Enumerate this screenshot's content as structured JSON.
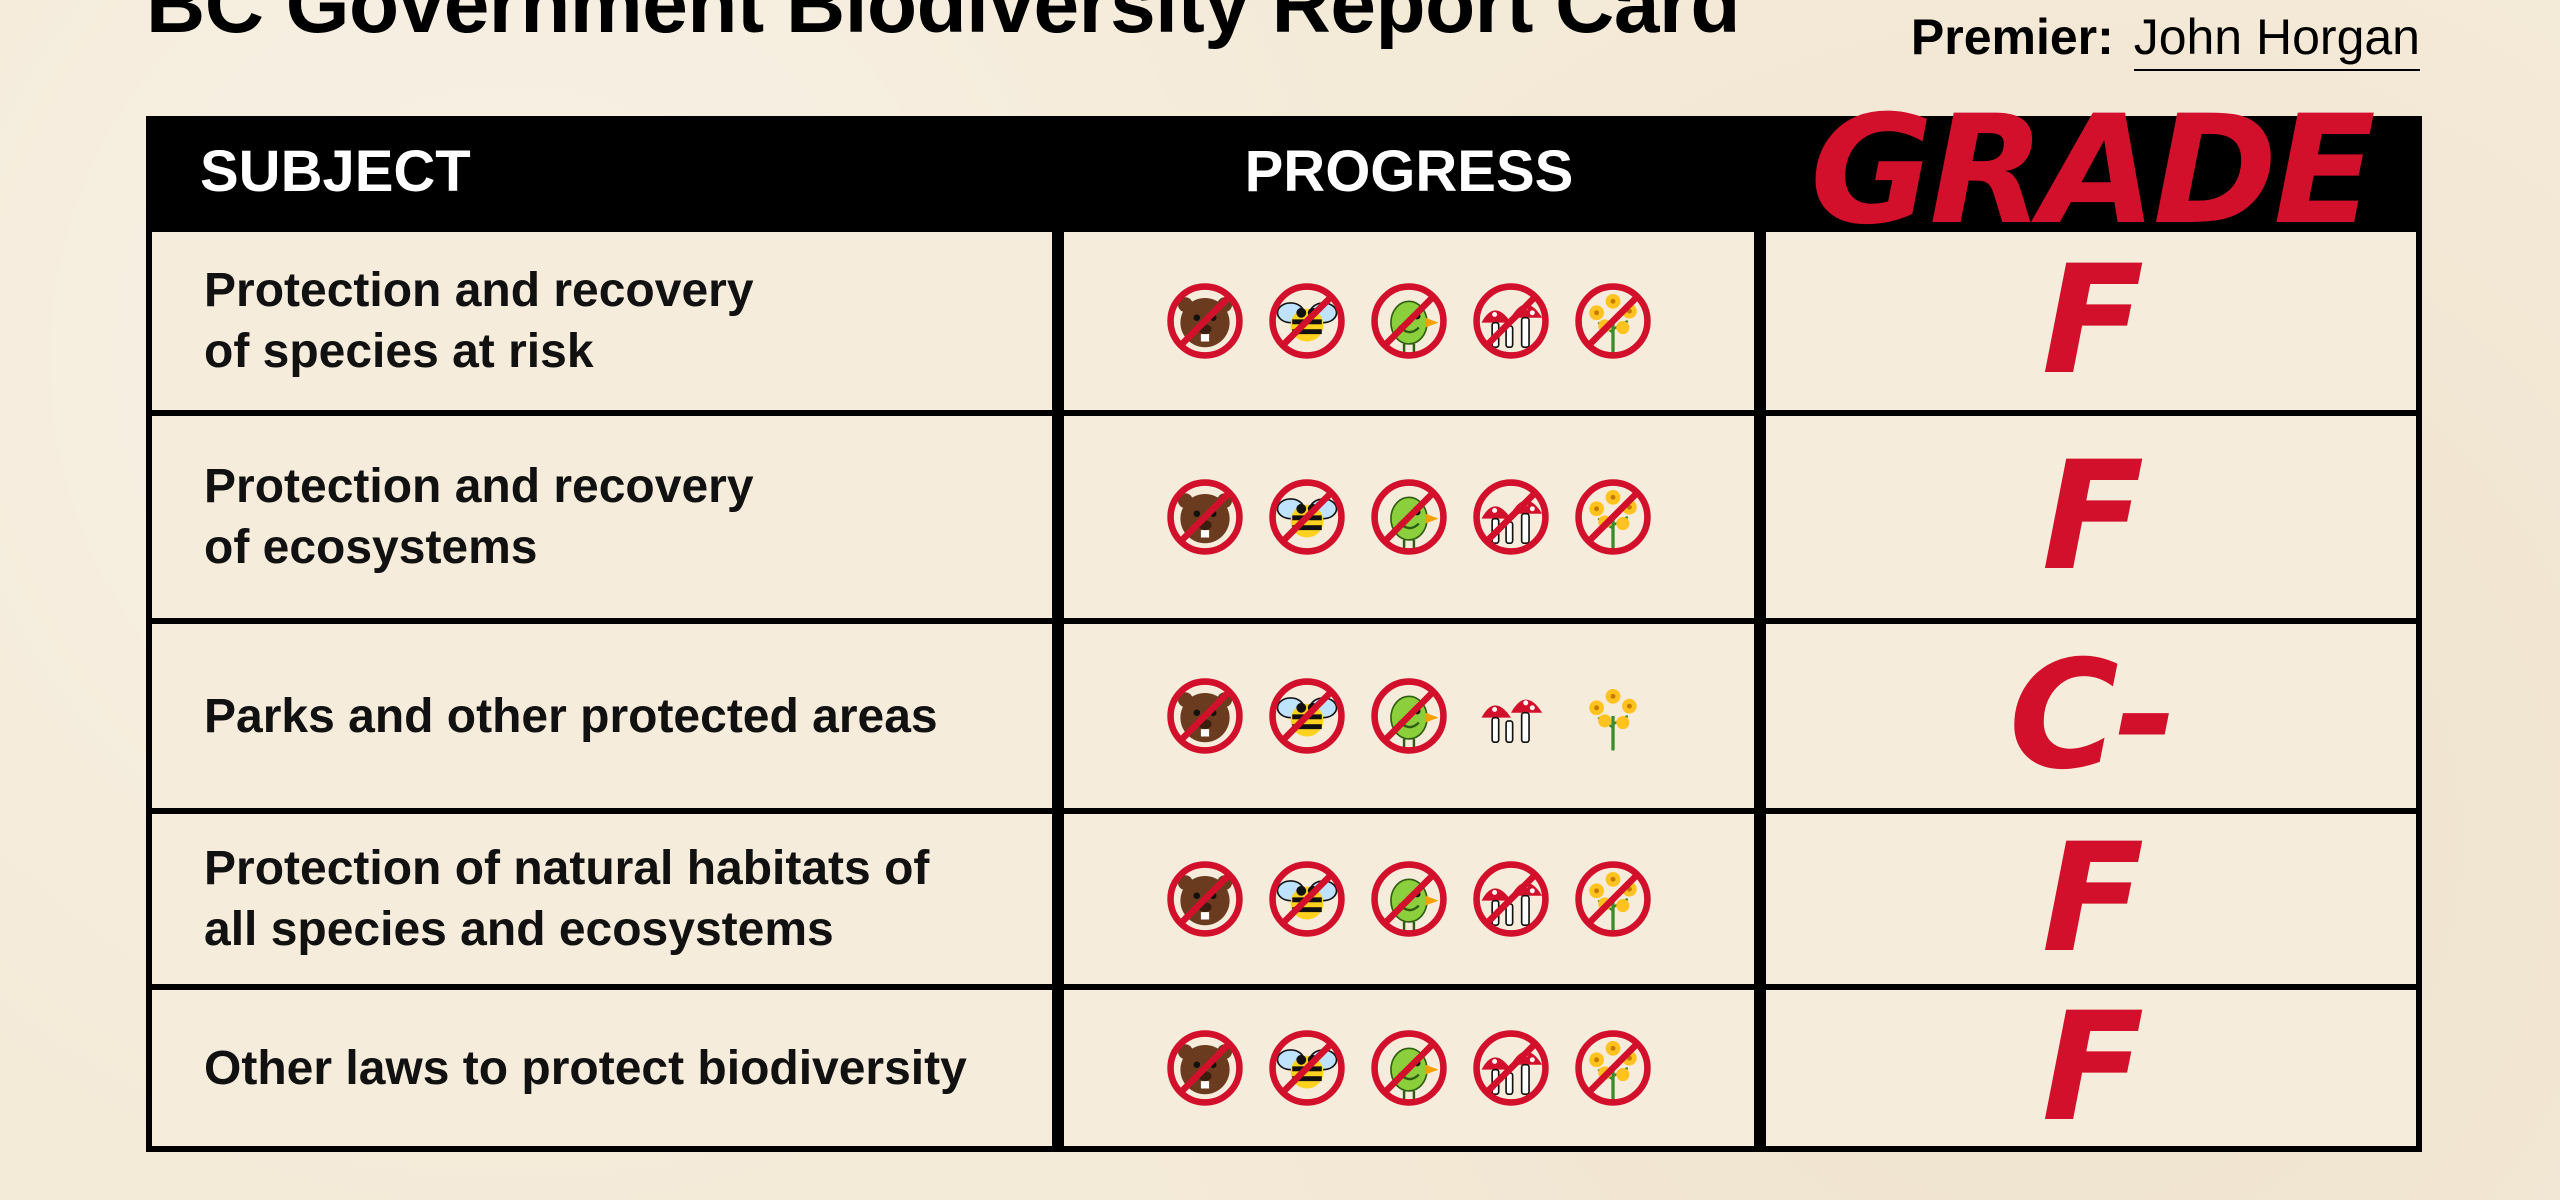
{
  "title": "BC Government Biodiversity Report Card",
  "premier": {
    "label": "Premier:",
    "name": "John Horgan"
  },
  "headers": {
    "subject": "SUBJECT",
    "progress": "PROGRESS",
    "grade": "GRADE"
  },
  "rows": [
    {
      "subject_line1": "Protection and recovery",
      "subject_line2": "of species at risk",
      "grade": "F",
      "icons": [
        {
          "name": "beaver",
          "crossed": true
        },
        {
          "name": "bee",
          "crossed": true
        },
        {
          "name": "bird",
          "crossed": true
        },
        {
          "name": "mushroom",
          "crossed": true
        },
        {
          "name": "flower",
          "crossed": true
        }
      ]
    },
    {
      "subject_line1": "Protection and recovery",
      "subject_line2": "of ecosystems",
      "grade": "F",
      "icons": [
        {
          "name": "beaver",
          "crossed": true
        },
        {
          "name": "bee",
          "crossed": true
        },
        {
          "name": "bird",
          "crossed": true
        },
        {
          "name": "mushroom",
          "crossed": true
        },
        {
          "name": "flower",
          "crossed": true
        }
      ]
    },
    {
      "subject_line1": "Parks and other protected areas",
      "subject_line2": "",
      "grade": "C-",
      "icons": [
        {
          "name": "beaver",
          "crossed": true
        },
        {
          "name": "bee",
          "crossed": true
        },
        {
          "name": "bird",
          "crossed": true
        },
        {
          "name": "mushroom",
          "crossed": false
        },
        {
          "name": "flower",
          "crossed": false
        }
      ]
    },
    {
      "subject_line1": "Protection of natural habitats of",
      "subject_line2": "all species and ecosystems",
      "grade": "F",
      "icons": [
        {
          "name": "beaver",
          "crossed": true
        },
        {
          "name": "bee",
          "crossed": true
        },
        {
          "name": "bird",
          "crossed": true
        },
        {
          "name": "mushroom",
          "crossed": true
        },
        {
          "name": "flower",
          "crossed": true
        }
      ]
    },
    {
      "subject_line1": "Other laws to protect biodiversity",
      "subject_line2": "",
      "grade": "F",
      "icons": [
        {
          "name": "beaver",
          "crossed": true
        },
        {
          "name": "bee",
          "crossed": true
        },
        {
          "name": "bird",
          "crossed": true
        },
        {
          "name": "mushroom",
          "crossed": true
        },
        {
          "name": "flower",
          "crossed": true
        }
      ]
    }
  ],
  "colors": {
    "grade_red": "#d3102b",
    "prohibit_red": "#d3102b",
    "header_bg": "#000000",
    "paper": "#f4ead8"
  }
}
